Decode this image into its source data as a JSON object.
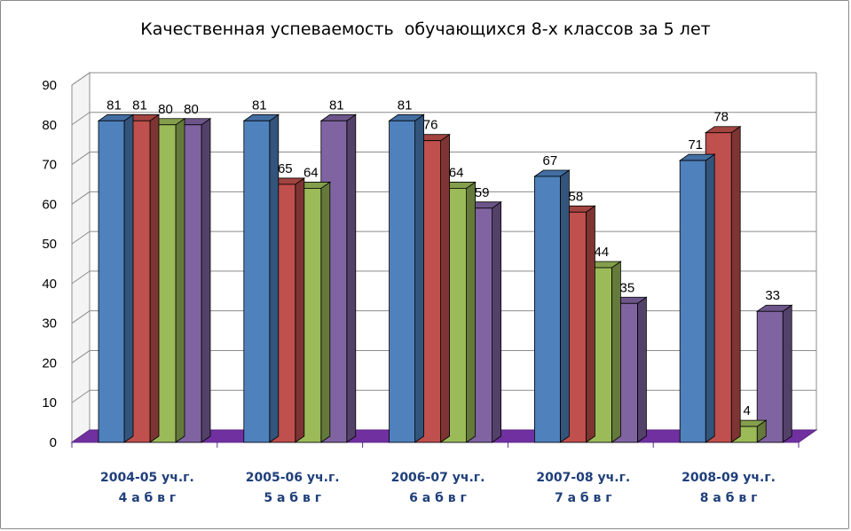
{
  "chart_data": {
    "type": "bar",
    "style": "3d-clustered-column",
    "title": "Качественная успеваемость  обучающихся 8-х классов за 5 лет",
    "xlabel": "",
    "ylabel": "",
    "ylim": [
      0,
      90
    ],
    "y_ticks": [
      "0",
      "10",
      "20",
      "30",
      "40",
      "50",
      "60",
      "70",
      "80",
      "90"
    ],
    "grid": true,
    "legend": "none",
    "categories": [
      [
        "2004-05 уч.г.",
        "4 а б в г"
      ],
      [
        "2005-06 уч.г.",
        "5 а б в г"
      ],
      [
        "2006-07 уч.г.",
        "6 а б в г"
      ],
      [
        "2007-08 уч.г.",
        "7 а б в г"
      ],
      [
        "2008-09 уч.г.",
        "8 а б в г"
      ]
    ],
    "series": [
      {
        "color": "#4f81bd",
        "values": [
          81,
          81,
          81,
          67,
          71
        ]
      },
      {
        "color": "#c0504d",
        "values": [
          81,
          65,
          76,
          58,
          78
        ]
      },
      {
        "color": "#9bbb59",
        "values": [
          80,
          64,
          64,
          44,
          4
        ]
      },
      {
        "color": "#8064a2",
        "values": [
          80,
          81,
          59,
          35,
          33
        ]
      }
    ]
  }
}
